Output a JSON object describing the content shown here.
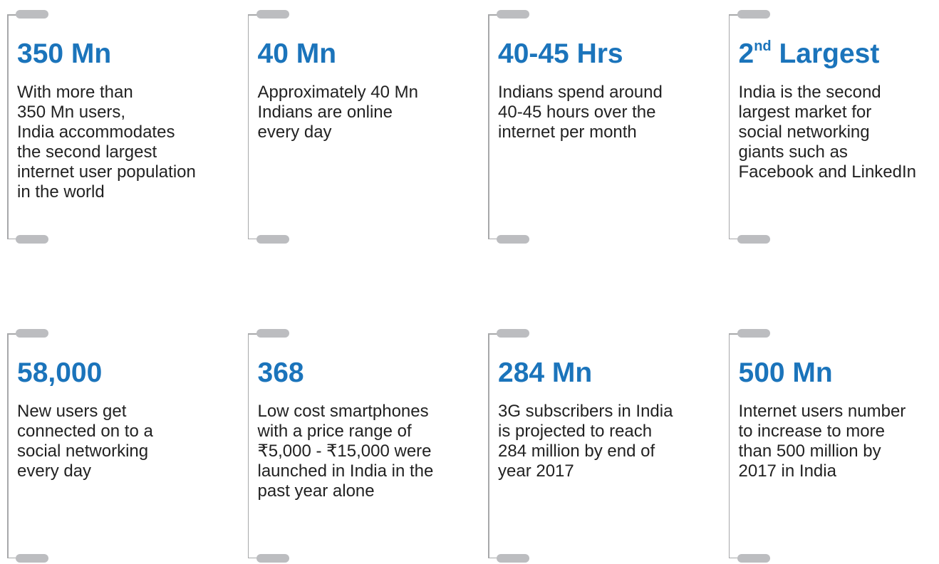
{
  "cards": [
    {
      "headline": "350 Mn",
      "lines": [
        "With more than",
        "350 Mn users,",
        "India accommodates",
        "the second largest",
        "internet user population",
        "in the world"
      ]
    },
    {
      "headline": "40 Mn",
      "lines": [
        "Approximately 40 Mn",
        "Indians are online",
        "every day"
      ]
    },
    {
      "headline": "40-45 Hrs",
      "lines": [
        "Indians spend around",
        "40-45 hours over the",
        "internet per month"
      ]
    },
    {
      "headline": "2",
      "headline_sup": "nd",
      "headline_rest": " Largest",
      "lines": [
        "India is the second",
        "largest market for",
        "social networking",
        "giants such as",
        "Facebook and LinkedIn"
      ]
    },
    {
      "headline": "58,000",
      "lines": [
        "New users get",
        "connected on to a",
        "social networking",
        "every day"
      ]
    },
    {
      "headline": "368",
      "lines": [
        "Low cost smartphones",
        "with a price range of",
        "₹5,000 - ₹15,000 were",
        "launched in India in the",
        "past year alone"
      ]
    },
    {
      "headline": "284 Mn",
      "lines": [
        "3G subscribers in India",
        "is projected to reach",
        "284 million by end of",
        "year 2017"
      ]
    },
    {
      "headline": "500 Mn",
      "lines": [
        "Internet users number",
        "to increase to more",
        "than 500 million by",
        "2017 in India"
      ]
    }
  ]
}
